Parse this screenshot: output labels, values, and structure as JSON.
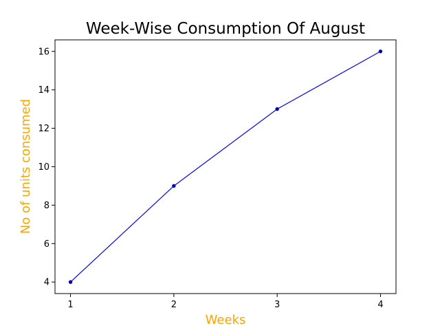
{
  "chart_data": {
    "type": "line",
    "title": "Week-Wise Consumption Of August",
    "xlabel": "Weeks",
    "ylabel": "No of units consumed",
    "x": [
      1,
      2,
      3,
      4
    ],
    "xticks": [
      "1",
      "2",
      "3",
      "4"
    ],
    "yticks": [
      "4",
      "6",
      "8",
      "10",
      "12",
      "14",
      "16"
    ],
    "xlim": [
      0.85,
      4.15
    ],
    "ylim": [
      3.4,
      16.6
    ],
    "grid": false,
    "series": [
      {
        "values": [
          4,
          9,
          13,
          16
        ],
        "color": "#0000ff",
        "marker_color": "#00008b"
      }
    ],
    "colors": {
      "label": "#ffa500",
      "axis": "#000000",
      "title": "#000000"
    }
  }
}
